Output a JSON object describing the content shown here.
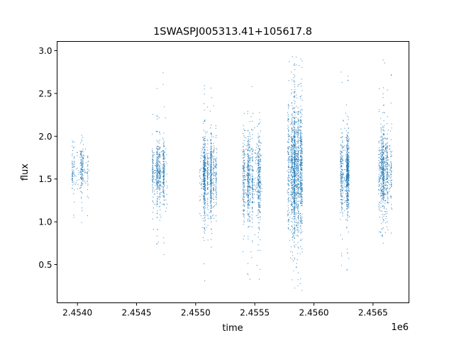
{
  "chart_data": {
    "type": "scatter",
    "title": "1SWASPJ005313.41+105617.8",
    "xlabel": "time",
    "ylabel": "flux",
    "x_offset_label": "1e6",
    "xlim": [
      2453828,
      2456804
    ],
    "ylim": [
      0.053,
      3.108
    ],
    "xticks": [
      2454000,
      2454500,
      2455000,
      2455500,
      2456000,
      2456500
    ],
    "xtick_labels": [
      "2.4540",
      "2.4545",
      "2.4550",
      "2.4555",
      "2.4560",
      "2.4565"
    ],
    "yticks": [
      0.5,
      1.0,
      1.5,
      2.0,
      2.5,
      3.0
    ],
    "ytick_labels": [
      "0.5",
      "1.0",
      "1.5",
      "2.0",
      "2.5",
      "3.0"
    ],
    "grid": false,
    "legend": "none",
    "color": "#1f77b4",
    "observing_seasons": [
      {
        "time_start": 2453955,
        "time_end": 2454100,
        "flux_center": 1.6,
        "flux_spread": 0.13,
        "flux_min": 0.75,
        "flux_max": 2.35,
        "points": 260
      },
      {
        "time_start": 2454630,
        "time_end": 2454760,
        "flux_center": 1.58,
        "flux_spread": 0.18,
        "flux_min": 0.3,
        "flux_max": 2.75,
        "points": 600
      },
      {
        "time_start": 2455030,
        "time_end": 2455180,
        "flux_center": 1.55,
        "flux_spread": 0.22,
        "flux_min": 0.2,
        "flux_max": 2.8,
        "points": 900
      },
      {
        "time_start": 2455400,
        "time_end": 2455560,
        "flux_center": 1.5,
        "flux_spread": 0.25,
        "flux_min": 0.3,
        "flux_max": 2.6,
        "points": 900
      },
      {
        "time_start": 2455775,
        "time_end": 2455900,
        "flux_center": 1.62,
        "flux_spread": 0.38,
        "flux_min": 0.18,
        "flux_max": 2.96,
        "points": 1600
      },
      {
        "time_start": 2456225,
        "time_end": 2456300,
        "flux_center": 1.57,
        "flux_spread": 0.22,
        "flux_min": 0.4,
        "flux_max": 2.96,
        "points": 700
      },
      {
        "time_start": 2456550,
        "time_end": 2456660,
        "flux_center": 1.6,
        "flux_spread": 0.22,
        "flux_min": 0.3,
        "flux_max": 2.96,
        "points": 700
      }
    ]
  }
}
